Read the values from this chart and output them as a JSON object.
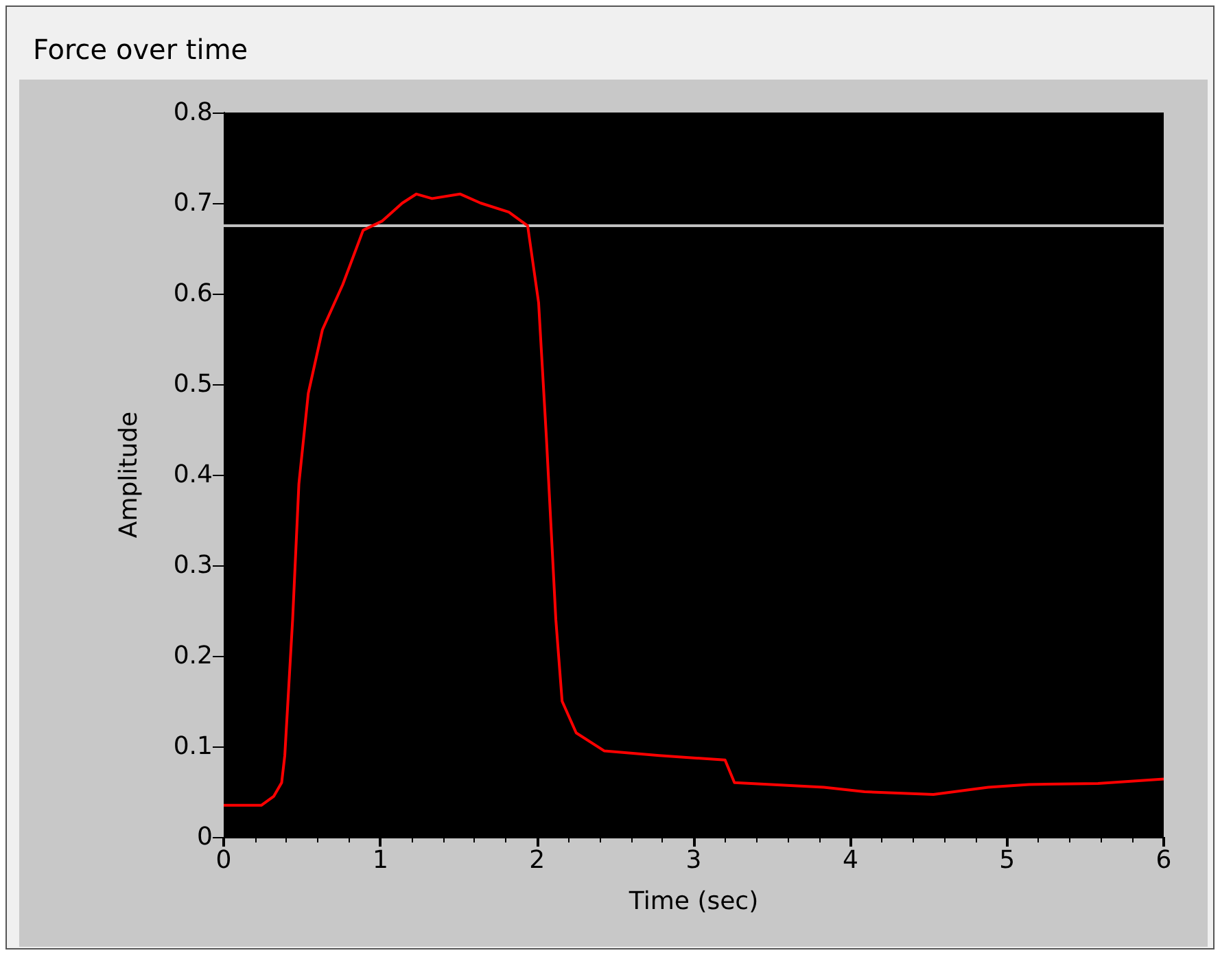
{
  "chart_data": {
    "type": "line",
    "title": "Force over time",
    "xlabel": "Time (sec)",
    "ylabel": "Amplitude",
    "xlim": [
      0,
      6
    ],
    "xticks": [
      0,
      1,
      2,
      3,
      4,
      5,
      6
    ],
    "ylim": [
      0,
      0.8
    ],
    "yticks": [
      0,
      0.1,
      0.2,
      0.3,
      0.4,
      0.5,
      0.6,
      0.7,
      0.8
    ],
    "grid": false,
    "marker": "none",
    "line_style": "solid",
    "ref_lines": [
      {
        "axis": "y",
        "value": 0.675,
        "color": "#c0c0c0"
      }
    ],
    "series": [
      {
        "color": "#ff0000",
        "x": [
          0,
          0.24,
          0.32,
          0.37,
          0.39,
          0.44,
          0.48,
          0.54,
          0.63,
          0.76,
          0.89,
          1.01,
          1.14,
          1.23,
          1.33,
          1.51,
          1.64,
          1.82,
          1.94,
          2.01,
          2.06,
          2.12,
          2.16,
          2.25,
          2.43,
          2.78,
          3.2,
          3.26,
          3.83,
          4.09,
          4.53,
          4.88,
          5.14,
          5.58,
          6.0
        ],
        "values": [
          0.035,
          0.035,
          0.045,
          0.06,
          0.09,
          0.24,
          0.39,
          0.49,
          0.56,
          0.61,
          0.67,
          0.68,
          0.7,
          0.71,
          0.705,
          0.71,
          0.7,
          0.69,
          0.675,
          0.59,
          0.44,
          0.24,
          0.15,
          0.115,
          0.095,
          0.09,
          0.085,
          0.06,
          0.055,
          0.05,
          0.047,
          0.055,
          0.058,
          0.059,
          0.064
        ]
      }
    ]
  }
}
